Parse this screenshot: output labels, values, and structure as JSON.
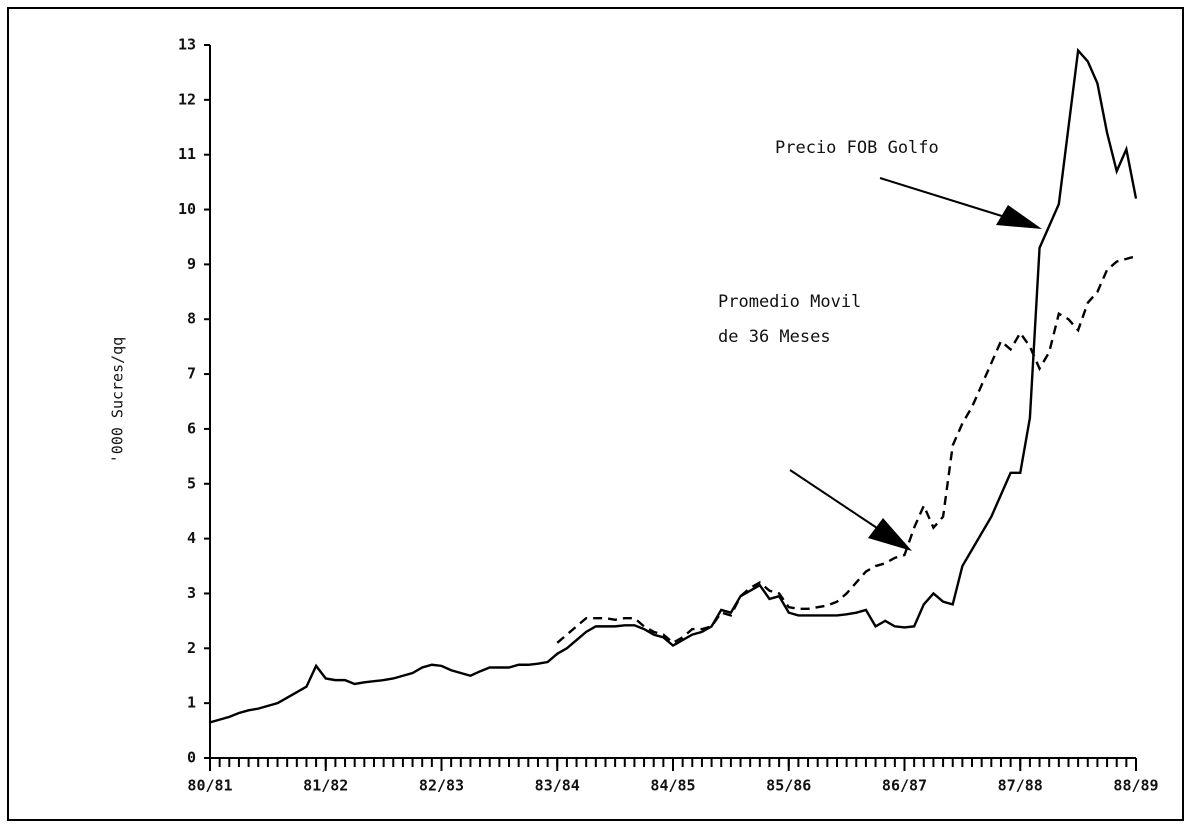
{
  "chart_data": {
    "type": "line",
    "y_label": "'000 Sucres/qq",
    "annotations": [
      {
        "text": "Precio FOB Golfo"
      },
      {
        "lines": [
          "Promedio Movil",
          "de 36 Meses"
        ]
      }
    ],
    "x": [
      0,
      1,
      2,
      3,
      4,
      5,
      6,
      7,
      8,
      9,
      10,
      11,
      12,
      13,
      14,
      15,
      16,
      17,
      18,
      19,
      20,
      21,
      22,
      23,
      24,
      25,
      26,
      27,
      28,
      29,
      30,
      31,
      32,
      33,
      34,
      35,
      36,
      37,
      38,
      39,
      40,
      41,
      42,
      43,
      44,
      45,
      46,
      47,
      48,
      49,
      50,
      51,
      52,
      53,
      54,
      55,
      56,
      57,
      58,
      59,
      60,
      61,
      62,
      63,
      64,
      65,
      66,
      67,
      68,
      69,
      70,
      71,
      72,
      73,
      74,
      75,
      76,
      77,
      78,
      79,
      80,
      81,
      82,
      83,
      84,
      85,
      86,
      87,
      88,
      89,
      90,
      91,
      92,
      93,
      94,
      95,
      96
    ],
    "series": [
      {
        "color": "#000",
        "dash": false,
        "values": [
          0.65,
          0.7,
          0.75,
          0.82,
          0.87,
          0.9,
          0.95,
          1.0,
          1.1,
          1.2,
          1.3,
          1.68,
          1.45,
          1.42,
          1.42,
          1.35,
          1.38,
          1.4,
          1.42,
          1.45,
          1.5,
          1.55,
          1.65,
          1.7,
          1.68,
          1.6,
          1.55,
          1.5,
          1.58,
          1.65,
          1.65,
          1.65,
          1.7,
          1.7,
          1.72,
          1.75,
          1.9,
          2.0,
          2.15,
          2.3,
          2.4,
          2.4,
          2.4,
          2.42,
          2.42,
          2.35,
          2.25,
          2.2,
          2.05,
          2.15,
          2.25,
          2.3,
          2.4,
          2.7,
          2.65,
          2.95,
          3.05,
          3.15,
          2.9,
          2.95,
          2.65,
          2.6,
          2.6,
          2.6,
          2.6,
          2.6,
          2.62,
          2.65,
          2.7,
          2.4,
          2.5,
          2.4,
          2.38,
          2.4,
          2.8,
          3.0,
          2.85,
          2.8,
          3.5,
          3.8,
          4.1,
          4.4,
          4.8,
          5.2,
          5.2,
          6.2,
          9.3,
          9.7,
          10.1,
          11.5,
          12.9,
          12.7,
          12.3,
          11.4,
          10.7,
          11.1,
          10.2
        ]
      },
      {
        "color": "#000",
        "dash": true,
        "values": [
          null,
          null,
          null,
          null,
          null,
          null,
          null,
          null,
          null,
          null,
          null,
          null,
          null,
          null,
          null,
          null,
          null,
          null,
          null,
          null,
          null,
          null,
          null,
          null,
          null,
          null,
          null,
          null,
          null,
          null,
          null,
          null,
          null,
          null,
          null,
          null,
          2.1,
          2.25,
          2.4,
          2.55,
          2.55,
          2.55,
          2.52,
          2.55,
          2.55,
          2.4,
          2.3,
          2.25,
          2.1,
          2.2,
          2.35,
          2.35,
          2.4,
          2.65,
          2.6,
          2.95,
          3.1,
          3.2,
          3.05,
          3.0,
          2.75,
          2.72,
          2.72,
          2.75,
          2.78,
          2.85,
          3.0,
          3.2,
          3.4,
          3.5,
          3.55,
          3.65,
          3.7,
          4.2,
          4.6,
          4.2,
          4.4,
          5.7,
          6.1,
          6.4,
          6.8,
          7.2,
          7.6,
          7.45,
          7.75,
          7.5,
          7.1,
          7.4,
          8.1,
          8.0,
          7.8,
          8.3,
          8.5,
          8.9,
          9.05,
          9.1,
          9.15
        ]
      }
    ],
    "xlim": [
      0,
      96
    ],
    "xticks": [
      {
        "value": 0,
        "label": "80/81"
      },
      {
        "value": 12,
        "label": "81/82"
      },
      {
        "value": 24,
        "label": "82/83"
      },
      {
        "value": 36,
        "label": "83/84"
      },
      {
        "value": 48,
        "label": "84/85"
      },
      {
        "value": 60,
        "label": "85/86"
      },
      {
        "value": 72,
        "label": "86/87"
      },
      {
        "value": 84,
        "label": "87/88"
      },
      {
        "value": 96,
        "label": "88/89"
      }
    ],
    "ylim": [
      0,
      13
    ],
    "yticks": [
      0,
      1,
      2,
      3,
      4,
      5,
      6,
      7,
      8,
      9,
      10,
      11,
      12,
      13
    ]
  }
}
